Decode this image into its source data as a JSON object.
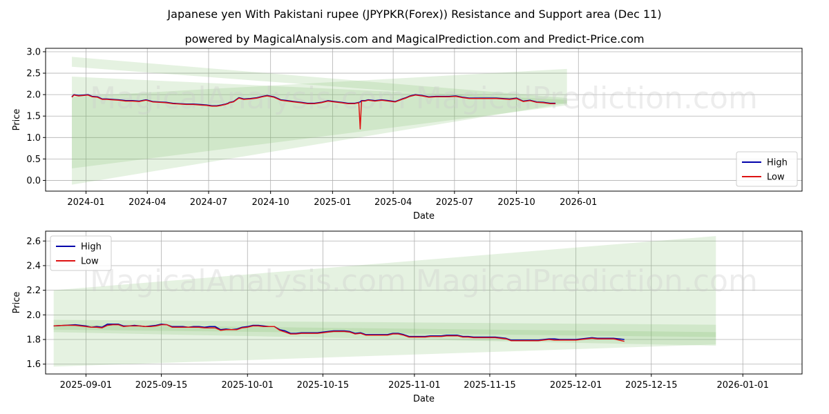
{
  "title": "Japanese yen With Pakistani rupee (JPYPKR(Forex)) Resistance and Support area (Dec 11)",
  "subtitle": "powered by MagicalAnalysis.com and MagicalPrediction.com and Predict-Price.com",
  "watermark": "MagicalAnalysis.com    MagicalPrediction.com",
  "colors": {
    "high": "#0000aa",
    "low": "#dd1111",
    "band": "#7bbf6a",
    "grid": "#b0b0b0"
  },
  "chart_data": [
    {
      "type": "line",
      "xlabel": "Date",
      "ylabel": "Price",
      "xlim": [
        -29,
        1094
      ],
      "ylim": [
        -0.25,
        3.08
      ],
      "yticks": [
        0.0,
        0.5,
        1.0,
        1.5,
        2.0,
        2.5,
        3.0
      ],
      "ytick_labels": [
        "0.0",
        "0.5",
        "1.0",
        "1.5",
        "2.0",
        "2.5",
        "3.0"
      ],
      "xticks": [
        31,
        122,
        213,
        305,
        397,
        487,
        578,
        670,
        762
      ],
      "xtick_labels": [
        "2024-01",
        "2024-04",
        "2024-07",
        "2024-10",
        "2025-01",
        "2025-04",
        "2025-07",
        "2025-10",
        "2026-01"
      ],
      "legend": [
        "High",
        "Low"
      ],
      "legend_position": "lower-right",
      "bands": [
        {
          "x0": 10,
          "x1": 745,
          "y0a": 2.65,
          "y0b": 2.88,
          "y1a": 1.78,
          "y1b": 1.92
        },
        {
          "x0": 10,
          "x1": 745,
          "y0a": -0.1,
          "y0b": 1.95,
          "y1a": 1.8,
          "y1b": 2.6
        },
        {
          "x0": 10,
          "x1": 745,
          "y0a": 0.28,
          "y0b": 2.42,
          "y1a": 1.75,
          "y1b": 1.88
        }
      ],
      "series": [
        {
          "name": "High",
          "x": [
            10,
            13,
            20,
            27,
            34,
            40,
            48,
            55,
            62,
            70,
            80,
            90,
            100,
            110,
            120,
            130,
            140,
            150,
            160,
            170,
            180,
            190,
            200,
            210,
            218,
            225,
            232,
            238,
            242,
            244,
            250,
            258,
            265,
            275,
            285,
            293,
            300,
            310,
            320,
            330,
            340,
            350,
            360,
            370,
            380,
            390,
            400,
            410,
            420,
            430,
            436,
            438,
            440,
            445,
            450,
            460,
            470,
            480,
            490,
            500,
            506,
            512,
            520,
            530,
            540,
            550,
            560,
            570,
            580,
            590,
            600,
            610,
            620,
            630,
            640,
            650,
            660,
            670,
            680,
            690,
            700,
            710,
            720,
            728
          ],
          "y": [
            1.95,
            2.0,
            1.98,
            1.99,
            2.0,
            1.96,
            1.95,
            1.9,
            1.9,
            1.89,
            1.88,
            1.86,
            1.86,
            1.85,
            1.88,
            1.84,
            1.83,
            1.82,
            1.8,
            1.79,
            1.78,
            1.78,
            1.77,
            1.76,
            1.74,
            1.74,
            1.76,
            1.78,
            1.8,
            1.82,
            1.84,
            1.93,
            1.9,
            1.91,
            1.93,
            1.96,
            1.98,
            1.95,
            1.88,
            1.86,
            1.84,
            1.82,
            1.8,
            1.8,
            1.82,
            1.86,
            1.84,
            1.82,
            1.8,
            1.8,
            1.82,
            1.83,
            1.86,
            1.86,
            1.88,
            1.86,
            1.88,
            1.86,
            1.84,
            1.9,
            1.93,
            1.97,
            2.0,
            1.98,
            1.95,
            1.96,
            1.96,
            1.96,
            1.97,
            1.94,
            1.92,
            1.92,
            1.92,
            1.92,
            1.92,
            1.91,
            1.9,
            1.92,
            1.85,
            1.87,
            1.83,
            1.82,
            1.8,
            1.8
          ]
        },
        {
          "name": "Low",
          "x": [
            10,
            13,
            20,
            27,
            34,
            40,
            48,
            55,
            62,
            70,
            80,
            90,
            100,
            110,
            120,
            130,
            140,
            150,
            160,
            170,
            180,
            190,
            200,
            210,
            218,
            225,
            232,
            238,
            242,
            244,
            250,
            258,
            265,
            275,
            285,
            293,
            300,
            310,
            320,
            330,
            340,
            350,
            360,
            370,
            380,
            390,
            400,
            410,
            420,
            430,
            436,
            438,
            440,
            445,
            450,
            460,
            470,
            480,
            490,
            500,
            506,
            512,
            520,
            530,
            540,
            550,
            560,
            570,
            580,
            590,
            600,
            610,
            620,
            630,
            640,
            650,
            660,
            670,
            680,
            690,
            700,
            710,
            720,
            728
          ],
          "y": [
            1.94,
            1.99,
            1.97,
            1.98,
            1.99,
            1.95,
            1.94,
            1.89,
            1.89,
            1.88,
            1.87,
            1.85,
            1.85,
            1.84,
            1.87,
            1.83,
            1.82,
            1.81,
            1.79,
            1.78,
            1.77,
            1.77,
            1.76,
            1.75,
            1.73,
            1.73,
            1.75,
            1.77,
            1.79,
            1.81,
            1.83,
            1.92,
            1.89,
            1.9,
            1.92,
            1.95,
            1.97,
            1.94,
            1.87,
            1.85,
            1.83,
            1.81,
            1.79,
            1.79,
            1.81,
            1.85,
            1.83,
            1.81,
            1.79,
            1.79,
            1.81,
            1.2,
            1.85,
            1.85,
            1.87,
            1.85,
            1.87,
            1.85,
            1.83,
            1.89,
            1.92,
            1.96,
            1.99,
            1.97,
            1.94,
            1.95,
            1.95,
            1.95,
            1.96,
            1.93,
            1.91,
            1.91,
            1.91,
            1.91,
            1.91,
            1.9,
            1.89,
            1.91,
            1.84,
            1.86,
            1.82,
            1.81,
            1.79,
            1.79
          ]
        }
      ]
    },
    {
      "type": "line",
      "xlabel": "Date",
      "ylabel": "Price",
      "xlim": [
        -7.5,
        133
      ],
      "ylim": [
        1.52,
        2.68
      ],
      "yticks": [
        1.6,
        1.8,
        2.0,
        2.2,
        2.4,
        2.6
      ],
      "ytick_labels": [
        "1.6",
        "1.8",
        "2.0",
        "2.2",
        "2.4",
        "2.6"
      ],
      "xticks": [
        0,
        14,
        30,
        44,
        61,
        75,
        91,
        105,
        122
      ],
      "xtick_labels": [
        "2025-09-01",
        "2025-09-15",
        "2025-10-01",
        "2025-10-15",
        "2025-11-01",
        "2025-11-15",
        "2025-12-01",
        "2025-12-15",
        "2026-01-01"
      ],
      "legend": [
        "High",
        "Low"
      ],
      "legend_position": "upper-left",
      "bands": [
        {
          "x0": -6,
          "x1": 117,
          "y0a": 1.58,
          "y0b": 2.2,
          "y1a": 1.76,
          "y1b": 2.64
        },
        {
          "x0": -6,
          "x1": 117,
          "y0a": 1.88,
          "y0b": 1.96,
          "y1a": 1.82,
          "y1b": 1.92
        },
        {
          "x0": -6,
          "x1": 117,
          "y0a": 1.86,
          "y0b": 1.92,
          "y1a": 1.75,
          "y1b": 1.86
        }
      ],
      "series": [
        {
          "name": "High",
          "x": [
            -6,
            -4,
            -2,
            0,
            1,
            2,
            3,
            4,
            5,
            6,
            7,
            8,
            9,
            10,
            11,
            12,
            13,
            14,
            15,
            16,
            17,
            18,
            19,
            20,
            21,
            22,
            23,
            24,
            25,
            26,
            27,
            28,
            29,
            30,
            31,
            32,
            33,
            34,
            35,
            36,
            37,
            38,
            39,
            40,
            41,
            42,
            43,
            44,
            45,
            46,
            47,
            48,
            49,
            50,
            51,
            52,
            53,
            54,
            55,
            56,
            57,
            58,
            59,
            60,
            61,
            62,
            63,
            64,
            65,
            66,
            67,
            68,
            69,
            70,
            71,
            72,
            73,
            74,
            75,
            76,
            77,
            78,
            79,
            80,
            81,
            82,
            83,
            84,
            85,
            86,
            87,
            88,
            89,
            90,
            91,
            92,
            93,
            94,
            95,
            96,
            97,
            98,
            99,
            100
          ],
          "y": [
            1.91,
            1.915,
            1.92,
            1.91,
            1.9,
            1.905,
            1.9,
            1.925,
            1.925,
            1.925,
            1.91,
            1.91,
            1.915,
            1.91,
            1.905,
            1.91,
            1.915,
            1.925,
            1.92,
            1.905,
            1.905,
            1.905,
            1.9,
            1.905,
            1.905,
            1.9,
            1.905,
            1.905,
            1.88,
            1.885,
            1.88,
            1.885,
            1.9,
            1.905,
            1.915,
            1.915,
            1.91,
            1.905,
            1.905,
            1.88,
            1.87,
            1.85,
            1.85,
            1.855,
            1.855,
            1.855,
            1.855,
            1.86,
            1.865,
            1.87,
            1.87,
            1.87,
            1.865,
            1.85,
            1.855,
            1.84,
            1.84,
            1.84,
            1.84,
            1.84,
            1.85,
            1.85,
            1.84,
            1.825,
            1.825,
            1.825,
            1.825,
            1.83,
            1.83,
            1.83,
            1.835,
            1.835,
            1.835,
            1.825,
            1.825,
            1.82,
            1.82,
            1.82,
            1.82,
            1.82,
            1.815,
            1.81,
            1.795,
            1.795,
            1.795,
            1.795,
            1.795,
            1.795,
            1.8,
            1.805,
            1.805,
            1.8,
            1.8,
            1.8,
            1.8,
            1.805,
            1.81,
            1.815,
            1.81,
            1.81,
            1.81,
            1.81,
            1.805,
            1.8
          ]
        },
        {
          "name": "Low",
          "x": [
            -6,
            -4,
            -2,
            0,
            1,
            2,
            3,
            4,
            5,
            6,
            7,
            8,
            9,
            10,
            11,
            12,
            13,
            14,
            15,
            16,
            17,
            18,
            19,
            20,
            21,
            22,
            23,
            24,
            25,
            26,
            27,
            28,
            29,
            30,
            31,
            32,
            33,
            34,
            35,
            36,
            37,
            38,
            39,
            40,
            41,
            42,
            43,
            44,
            45,
            46,
            47,
            48,
            49,
            50,
            51,
            52,
            53,
            54,
            55,
            56,
            57,
            58,
            59,
            60,
            61,
            62,
            63,
            64,
            65,
            66,
            67,
            68,
            69,
            70,
            71,
            72,
            73,
            74,
            75,
            76,
            77,
            78,
            79,
            80,
            81,
            82,
            83,
            84,
            85,
            86,
            87,
            88,
            89,
            90,
            91,
            92,
            93,
            94,
            95,
            96,
            97,
            98,
            99,
            100
          ],
          "y": [
            1.91,
            1.915,
            1.915,
            1.905,
            1.9,
            1.9,
            1.895,
            1.915,
            1.92,
            1.92,
            1.905,
            1.91,
            1.91,
            1.91,
            1.905,
            1.905,
            1.91,
            1.92,
            1.92,
            1.9,
            1.9,
            1.9,
            1.9,
            1.9,
            1.9,
            1.895,
            1.895,
            1.895,
            1.875,
            1.88,
            1.88,
            1.88,
            1.895,
            1.9,
            1.91,
            1.91,
            1.905,
            1.905,
            1.905,
            1.875,
            1.86,
            1.845,
            1.845,
            1.85,
            1.85,
            1.85,
            1.85,
            1.855,
            1.86,
            1.865,
            1.865,
            1.865,
            1.86,
            1.845,
            1.85,
            1.835,
            1.835,
            1.835,
            1.835,
            1.835,
            1.845,
            1.845,
            1.835,
            1.82,
            1.82,
            1.82,
            1.82,
            1.825,
            1.825,
            1.825,
            1.83,
            1.83,
            1.83,
            1.82,
            1.82,
            1.815,
            1.815,
            1.815,
            1.815,
            1.815,
            1.81,
            1.805,
            1.79,
            1.79,
            1.79,
            1.79,
            1.79,
            1.79,
            1.795,
            1.8,
            1.795,
            1.795,
            1.795,
            1.795,
            1.795,
            1.8,
            1.805,
            1.81,
            1.805,
            1.805,
            1.805,
            1.805,
            1.795,
            1.785
          ]
        }
      ]
    }
  ]
}
